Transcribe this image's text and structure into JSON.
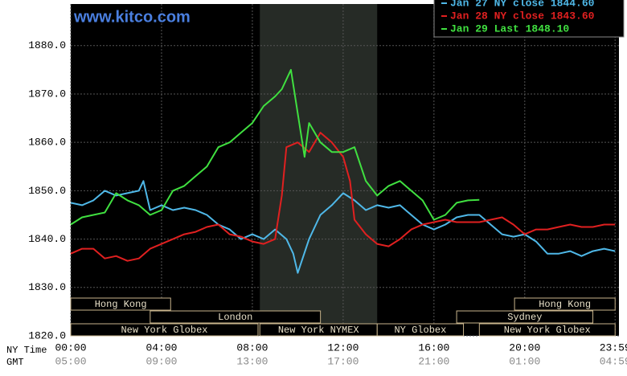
{
  "chart_data": {
    "type": "line",
    "watermark": "www.kitco.com",
    "xlabel": "NY Time",
    "x2label": "GMT",
    "xlim": [
      0,
      24.15
    ],
    "ylim": [
      1820,
      1888.6
    ],
    "yticks": [
      {
        "value": 1820,
        "label": "1820.0"
      },
      {
        "value": 1830,
        "label": "1830.0"
      },
      {
        "value": 1840,
        "label": "1840.0"
      },
      {
        "value": 1850,
        "label": "1850.0"
      },
      {
        "value": 1860,
        "label": "1860.0"
      },
      {
        "value": 1870,
        "label": "1870.0"
      },
      {
        "value": 1880,
        "label": "1880.0"
      }
    ],
    "xticks": [
      {
        "value": 0,
        "label": "00:00"
      },
      {
        "value": 4,
        "label": "04:00"
      },
      {
        "value": 8,
        "label": "08:00"
      },
      {
        "value": 12,
        "label": "12:00"
      },
      {
        "value": 16,
        "label": "16:00"
      },
      {
        "value": 20,
        "label": "20:00"
      },
      {
        "value": 23.98,
        "label": "23:59"
      }
    ],
    "x2ticks": [
      {
        "value": 0,
        "label": "05:00"
      },
      {
        "value": 4,
        "label": "09:00"
      },
      {
        "value": 8,
        "label": "13:00"
      },
      {
        "value": 12,
        "label": "17:00"
      },
      {
        "value": 16,
        "label": "21:00"
      },
      {
        "value": 20,
        "label": "01:00"
      },
      {
        "value": 23.98,
        "label": "04:59"
      }
    ],
    "grid": true,
    "shade": [
      8.33,
      13.5
    ],
    "sessions": [
      {
        "label": "Hong Kong",
        "start": 0,
        "end": 4.4,
        "row": 0
      },
      {
        "label": "Hong Kong",
        "start": 19.55,
        "end": 23.98,
        "row": 0
      },
      {
        "label": "London",
        "start": 3.5,
        "end": 11,
        "row": 1
      },
      {
        "label": "Sydney",
        "start": 17,
        "end": 23,
        "row": 1
      },
      {
        "label": "New York Globex",
        "start": 0,
        "end": 8.25,
        "row": 2
      },
      {
        "label": "New York NYMEX",
        "start": 8.33,
        "end": 13.5,
        "row": 2
      },
      {
        "label": "NY Globex",
        "start": 13.5,
        "end": 17.3,
        "row": 2
      },
      {
        "label": "New York Globex",
        "start": 18,
        "end": 23.98,
        "row": 2
      }
    ],
    "series": [
      {
        "name": "Jan 27 NY close 1844.60",
        "color": "#4fb8e8",
        "x": [
          0,
          0.5,
          1,
          1.5,
          2,
          2.5,
          3,
          3.2,
          3.5,
          4,
          4.5,
          5,
          5.5,
          6,
          6.5,
          7,
          7.5,
          8,
          8.5,
          9,
          9.5,
          9.8,
          10,
          10.5,
          11,
          11.5,
          12,
          12.5,
          13,
          13.5,
          14,
          14.5,
          15,
          15.5,
          16,
          16.5,
          17,
          17.5,
          18,
          18.5,
          19,
          19.5,
          20,
          20.5,
          21,
          21.5,
          22,
          22.5,
          23,
          23.5,
          23.98
        ],
        "values": [
          1847.5,
          1847,
          1848,
          1850,
          1849,
          1849.5,
          1850,
          1852,
          1846,
          1847,
          1846,
          1846.5,
          1846,
          1845,
          1843,
          1842,
          1840,
          1841,
          1840,
          1842,
          1840,
          1837,
          1833,
          1840,
          1845,
          1847,
          1849.5,
          1848,
          1846,
          1847,
          1846.5,
          1847,
          1845,
          1843,
          1842,
          1843,
          1844.5,
          1845,
          1845,
          1843,
          1841,
          1840.5,
          1841,
          1839.5,
          1837,
          1837,
          1837.5,
          1836.5,
          1837.5,
          1838,
          1837.5
        ]
      },
      {
        "name": "Jan 28 NY close 1843.60",
        "color": "#e02020",
        "x": [
          0,
          0.5,
          1,
          1.5,
          2,
          2.5,
          3,
          3.5,
          4,
          4.5,
          5,
          5.5,
          6,
          6.5,
          7,
          7.5,
          8,
          8.5,
          9,
          9.3,
          9.5,
          10,
          10.5,
          11,
          11.5,
          12,
          12.3,
          12.5,
          13,
          13.5,
          14,
          14.5,
          15,
          15.5,
          16,
          16.5,
          17,
          17.5,
          18,
          18.5,
          19,
          19.5,
          20,
          20.5,
          21,
          21.5,
          22,
          22.5,
          23,
          23.5,
          23.98
        ],
        "values": [
          1837,
          1838,
          1838,
          1836,
          1836.5,
          1835.5,
          1836,
          1838,
          1839,
          1840,
          1841,
          1841.5,
          1842.5,
          1843,
          1841,
          1840.5,
          1839.5,
          1839,
          1840,
          1849,
          1859,
          1860,
          1858,
          1862,
          1860,
          1857,
          1852,
          1844,
          1841,
          1839,
          1838.5,
          1840,
          1842,
          1843,
          1843.5,
          1844,
          1843.5,
          1843.5,
          1843.5,
          1844,
          1844.5,
          1843,
          1841,
          1842,
          1842,
          1842.5,
          1843,
          1842.5,
          1842.5,
          1843,
          1843
        ]
      },
      {
        "name": "Jan 29 Last 1848.10",
        "color": "#40e040",
        "x": [
          0,
          0.5,
          1,
          1.5,
          2,
          2.5,
          3,
          3.5,
          4,
          4.5,
          5,
          5.5,
          6,
          6.5,
          7,
          7.5,
          8,
          8.5,
          9,
          9.3,
          9.7,
          10,
          10.3,
          10.5,
          11,
          11.5,
          12,
          12.5,
          13,
          13.5,
          14,
          14.5,
          15,
          15.5,
          16,
          16.5,
          17,
          17.5,
          18
        ],
        "values": [
          1843,
          1844.5,
          1845,
          1845.5,
          1849.5,
          1848,
          1847,
          1845,
          1846,
          1850,
          1851,
          1853,
          1855,
          1859,
          1860,
          1862,
          1864,
          1867.5,
          1869.5,
          1871,
          1875,
          1866,
          1857,
          1864,
          1860,
          1858,
          1858,
          1859,
          1852,
          1849,
          1851,
          1852,
          1850,
          1848,
          1844,
          1845,
          1847.5,
          1848,
          1848.1
        ]
      }
    ]
  }
}
